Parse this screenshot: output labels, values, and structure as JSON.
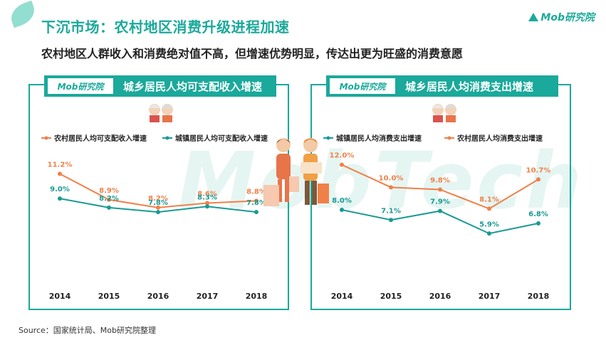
{
  "header": {
    "title": "下沉市场：农村地区消费升级进程加速",
    "subtitle": "农村地区人群收入和消费绝对值不高，但增速优势明显，传达出更为旺盛的消费意愿",
    "brand": "Mob研究院"
  },
  "watermark": "MobTech",
  "source": "Source：国家统计局、Mob研究院整理",
  "colors": {
    "accent": "#1aa99b",
    "orange": "#f08048",
    "teal": "#1a9a93"
  },
  "chart_data": [
    {
      "type": "line",
      "title": "城乡居民人均可支配收入增速",
      "logo": "Mob研究院",
      "x": [
        "2014",
        "2015",
        "2016",
        "2017",
        "2018"
      ],
      "ylim": [
        0,
        14
      ],
      "legend_position": "top",
      "series": [
        {
          "name": "农村居民人均可支配收入增速",
          "color": "#f08048",
          "values": [
            11.2,
            8.9,
            8.2,
            8.6,
            8.8
          ],
          "labels": [
            "11.2%",
            "8.9%",
            "8.2%",
            "8.6%",
            "8.8%"
          ]
        },
        {
          "name": "城镇居民人均可支配收入增速",
          "color": "#1a9a93",
          "values": [
            9.0,
            8.2,
            7.8,
            8.3,
            7.8
          ],
          "labels": [
            "9.0%",
            "8.2%",
            "7.8%",
            "8.3%",
            "7.8%"
          ]
        }
      ]
    },
    {
      "type": "line",
      "title": "城乡居民人均消费支出增速",
      "logo": "Mob研究院",
      "x": [
        "2014",
        "2015",
        "2016",
        "2017",
        "2018"
      ],
      "ylim": [
        0,
        14
      ],
      "legend_position": "top",
      "series": [
        {
          "name": "城镇居民人均消费支出增速",
          "color": "#1a9a93",
          "values": [
            8.0,
            7.1,
            7.9,
            5.9,
            6.8
          ],
          "labels": [
            "8.0%",
            "7.1%",
            "7.9%",
            "5.9%",
            "6.8%"
          ]
        },
        {
          "name": "农村居民人均消费支出增速",
          "color": "#f08048",
          "values": [
            12.0,
            10.0,
            9.8,
            8.1,
            10.7
          ],
          "labels": [
            "12.0%",
            "10.0%",
            "9.8%",
            "8.1%",
            "10.7%"
          ]
        }
      ]
    }
  ]
}
